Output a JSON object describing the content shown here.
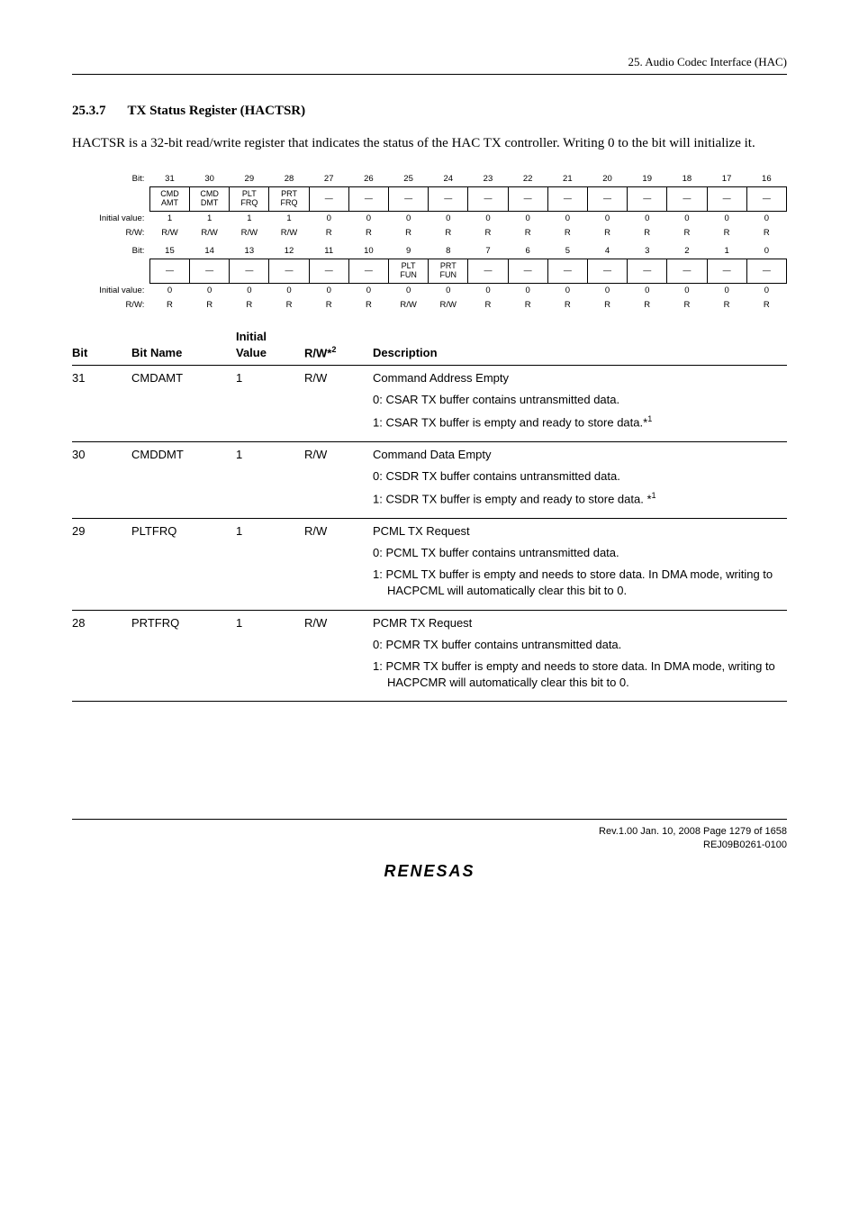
{
  "top_header": "25.   Audio Codec Interface (HAC)",
  "heading_num": "25.3.7",
  "heading_title": "TX Status Register (HACTSR)",
  "paragraph": "HACTSR is a 32-bit read/write register that indicates the status of the HAC TX controller. Writing 0 to the bit will initialize it.",
  "reg": {
    "label_bit": "Bit:",
    "label_init": "Initial value:",
    "label_rw": "R/W:",
    "upper_bits": [
      "31",
      "30",
      "29",
      "28",
      "27",
      "26",
      "25",
      "24",
      "23",
      "22",
      "21",
      "20",
      "19",
      "18",
      "17",
      "16"
    ],
    "upper_names": [
      "CMD\nAMT",
      "CMD\nDMT",
      "PLT\nFRQ",
      "PRT\nFRQ",
      "—",
      "—",
      "—",
      "—",
      "—",
      "—",
      "—",
      "—",
      "—",
      "—",
      "—",
      "—"
    ],
    "upper_init": [
      "1",
      "1",
      "1",
      "1",
      "0",
      "0",
      "0",
      "0",
      "0",
      "0",
      "0",
      "0",
      "0",
      "0",
      "0",
      "0"
    ],
    "upper_rw": [
      "R/W",
      "R/W",
      "R/W",
      "R/W",
      "R",
      "R",
      "R",
      "R",
      "R",
      "R",
      "R",
      "R",
      "R",
      "R",
      "R",
      "R"
    ],
    "lower_bits": [
      "15",
      "14",
      "13",
      "12",
      "11",
      "10",
      "9",
      "8",
      "7",
      "6",
      "5",
      "4",
      "3",
      "2",
      "1",
      "0"
    ],
    "lower_names": [
      "—",
      "—",
      "—",
      "—",
      "—",
      "—",
      "PLT\nFUN",
      "PRT\nFUN",
      "—",
      "—",
      "—",
      "—",
      "—",
      "—",
      "—",
      "—"
    ],
    "lower_init": [
      "0",
      "0",
      "0",
      "0",
      "0",
      "0",
      "0",
      "0",
      "0",
      "0",
      "0",
      "0",
      "0",
      "0",
      "0",
      "0"
    ],
    "lower_rw": [
      "R",
      "R",
      "R",
      "R",
      "R",
      "R",
      "R/W",
      "R/W",
      "R",
      "R",
      "R",
      "R",
      "R",
      "R",
      "R",
      "R"
    ]
  },
  "tbl": {
    "h_bit": "Bit",
    "h_name": "Bit Name",
    "h_init": "Initial Value",
    "h_rw": "R/W*",
    "h_rw_sup": "2",
    "h_desc": "Description",
    "rows": [
      {
        "bit": "31",
        "name": "CMDAMT",
        "init": "1",
        "rw": "R/W",
        "lines": [
          {
            "t": "Command Address Empty"
          },
          {
            "t": "0: CSAR TX buffer contains untransmitted data."
          },
          {
            "t": "1: CSAR TX buffer is empty and ready to store data.*",
            "sup": "1"
          }
        ]
      },
      {
        "bit": "30",
        "name": "CMDDMT",
        "init": "1",
        "rw": "R/W",
        "lines": [
          {
            "t": "Command Data Empty"
          },
          {
            "t": "0: CSDR TX buffer contains untransmitted data."
          },
          {
            "t": "1: CSDR TX buffer is empty and ready to store data. *",
            "sup": "1"
          }
        ]
      },
      {
        "bit": "29",
        "name": "PLTFRQ",
        "init": "1",
        "rw": "R/W",
        "lines": [
          {
            "t": "PCML TX Request"
          },
          {
            "t": "0: PCML TX buffer contains untransmitted data."
          },
          {
            "t": "1: PCML TX buffer is empty and needs to store data. In DMA mode, writing to HACPCML will automatically clear this bit to 0.",
            "indent": true
          }
        ]
      },
      {
        "bit": "28",
        "name": "PRTFRQ",
        "init": "1",
        "rw": "R/W",
        "lines": [
          {
            "t": "PCMR TX Request"
          },
          {
            "t": "0: PCMR TX buffer contains untransmitted data."
          },
          {
            "t": "1: PCMR TX buffer is empty and needs to store data. In DMA mode, writing to HACPCMR will automatically clear this bit to 0.",
            "indent": true
          }
        ]
      }
    ]
  },
  "footer_line1": "Rev.1.00  Jan. 10, 2008  Page 1279 of 1658",
  "footer_line2": "REJ09B0261-0100",
  "renesas": "RENESAS"
}
